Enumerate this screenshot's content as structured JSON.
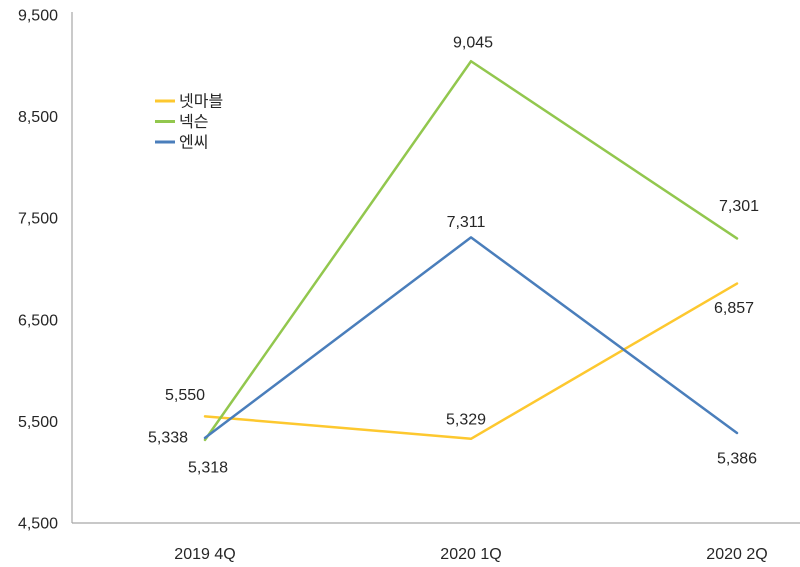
{
  "chart_data": {
    "type": "line",
    "title": "",
    "xlabel": "",
    "ylabel": "",
    "categories": [
      "2019 4Q",
      "2020 1Q",
      "2020 2Q"
    ],
    "series": [
      {
        "name": "넷마블",
        "color": "#FDC82F",
        "values": [
          5550,
          5329,
          6857
        ]
      },
      {
        "name": "넥슨",
        "color": "#92C74E",
        "values": [
          5318,
          9045,
          7301
        ]
      },
      {
        "name": "엔씨",
        "color": "#4A7EBB",
        "values": [
          5338,
          7311,
          5386
        ]
      }
    ],
    "data_labels": [
      "5,550",
      "5,329",
      "6,857",
      "5,318",
      "9,045",
      "7,301",
      "5,338",
      "7,311",
      "5,386"
    ],
    "y_ticks": [
      4500,
      5500,
      6500,
      7500,
      8500,
      9500
    ],
    "y_tick_labels": [
      "4,500",
      "5,500",
      "6,500",
      "7,500",
      "8,500",
      "9,500"
    ],
    "ylim": [
      4500,
      9500
    ],
    "grid": false,
    "legend_position": "inside-top-left",
    "legend": [
      "넷마블",
      "넥슨",
      "엔씨"
    ]
  },
  "colors": {
    "background": "#FFFFFF",
    "axis_line": "#A6A6A6",
    "text": "#262626"
  }
}
